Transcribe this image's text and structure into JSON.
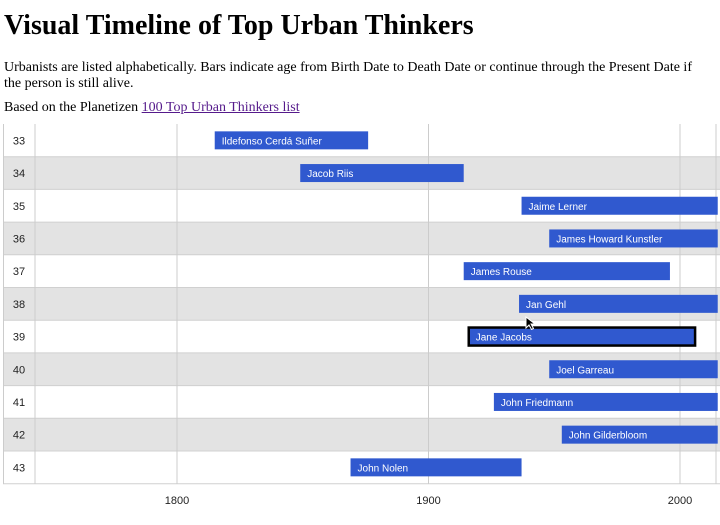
{
  "header": {
    "title": "Visual Timeline of Top Urban Thinkers",
    "description": "Urbanists are listed alphabetically. Bars indicate age from Birth Date to Death Date or continue through the Present Date if the person is still alive.",
    "source_prefix": "Based on the Planetizen ",
    "source_link_text": "100 Top Urban Thinkers list"
  },
  "colors": {
    "bar": "#3059cf",
    "bar_text": "#ffffff",
    "row_alt": "#e3e3e3",
    "row_base": "#ffffff",
    "grid": "#cccccc",
    "selected_outline": "#000000"
  },
  "chart_data": {
    "type": "timeline",
    "title": "",
    "xlabel": "",
    "ylabel": "",
    "x_ticks": [
      1800,
      1900,
      2000
    ],
    "xlim": [
      1743,
      2015
    ],
    "grid": true,
    "selected_row": 39,
    "rows": [
      {
        "index": 33,
        "name": "Ildefonso Cerdá Suñer",
        "start": 1815,
        "end": 1876
      },
      {
        "index": 34,
        "name": "Jacob Riis",
        "start": 1849,
        "end": 1914
      },
      {
        "index": 35,
        "name": "Jaime Lerner",
        "start": 1937,
        "end": 2015
      },
      {
        "index": 36,
        "name": "James Howard Kunstler",
        "start": 1948,
        "end": 2015
      },
      {
        "index": 37,
        "name": "James Rouse",
        "start": 1914,
        "end": 1996
      },
      {
        "index": 38,
        "name": "Jan Gehl",
        "start": 1936,
        "end": 2015
      },
      {
        "index": 39,
        "name": "Jane Jacobs",
        "start": 1916,
        "end": 2006
      },
      {
        "index": 40,
        "name": "Joel Garreau",
        "start": 1948,
        "end": 2015
      },
      {
        "index": 41,
        "name": "John Friedmann",
        "start": 1926,
        "end": 2015
      },
      {
        "index": 42,
        "name": "John Gilderbloom",
        "start": 1953,
        "end": 2015
      },
      {
        "index": 43,
        "name": "John Nolen",
        "start": 1869,
        "end": 1937
      }
    ]
  }
}
